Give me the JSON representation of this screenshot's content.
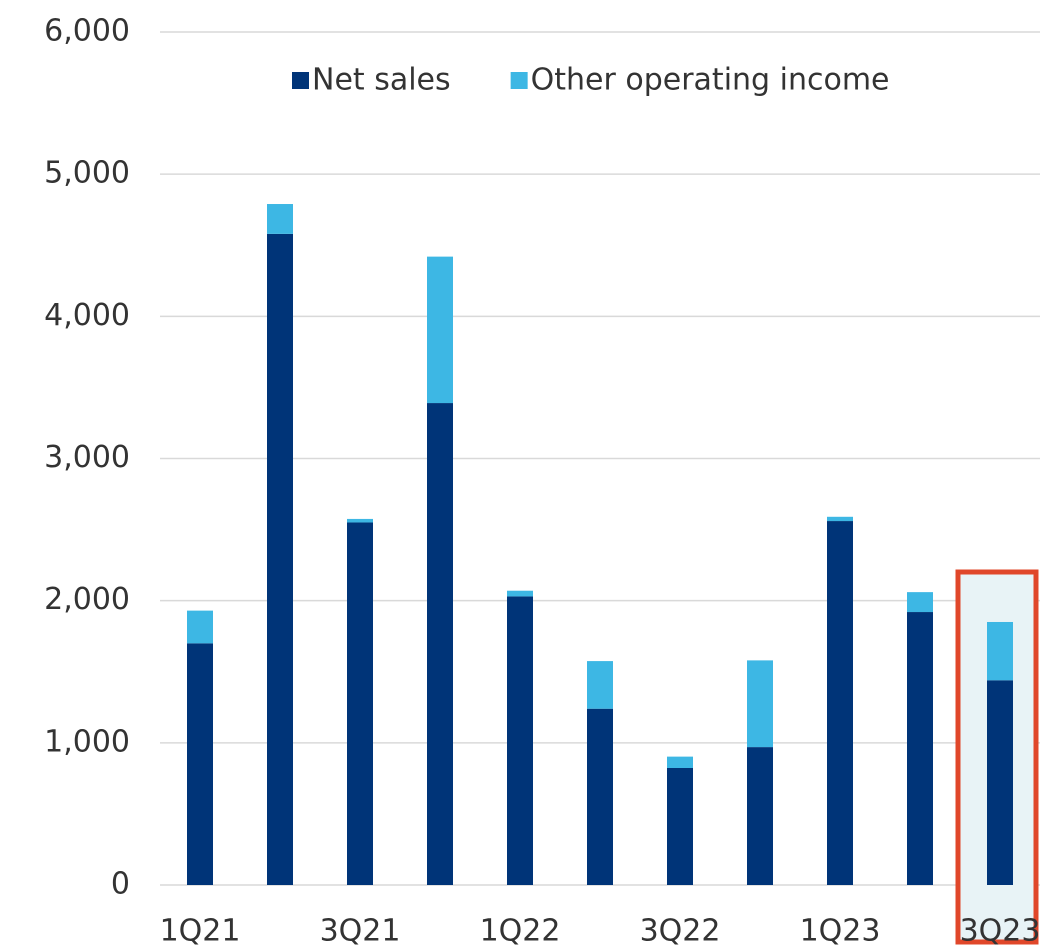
{
  "chart_data": {
    "type": "bar",
    "stacked": true,
    "categories": [
      "1Q21",
      null,
      "3Q21",
      null,
      "1Q22",
      null,
      "3Q22",
      null,
      "1Q23",
      null,
      "3Q23"
    ],
    "series": [
      {
        "name": "Net sales",
        "color": "#003478",
        "values": [
          1700,
          4580,
          2550,
          3390,
          2030,
          1240,
          823,
          970,
          2560,
          1920,
          1440
        ]
      },
      {
        "name": "Other operating income",
        "color": "#3db7e4",
        "values": [
          230,
          210,
          25,
          1030,
          40,
          335,
          80,
          610,
          30,
          140,
          410
        ]
      }
    ],
    "ylim": [
      0,
      6000
    ],
    "yticks": [
      0,
      {
        "value": 1000,
        "label": "1,000"
      },
      {
        "value": 2000,
        "label": "2,000"
      },
      {
        "value": 3000,
        "label": "3,000"
      },
      {
        "value": 4000,
        "label": "4,000"
      },
      {
        "value": 5000,
        "label": "5,000"
      },
      {
        "value": 6000,
        "label": "6,000"
      }
    ],
    "grid": true,
    "legend": "top"
  }
}
